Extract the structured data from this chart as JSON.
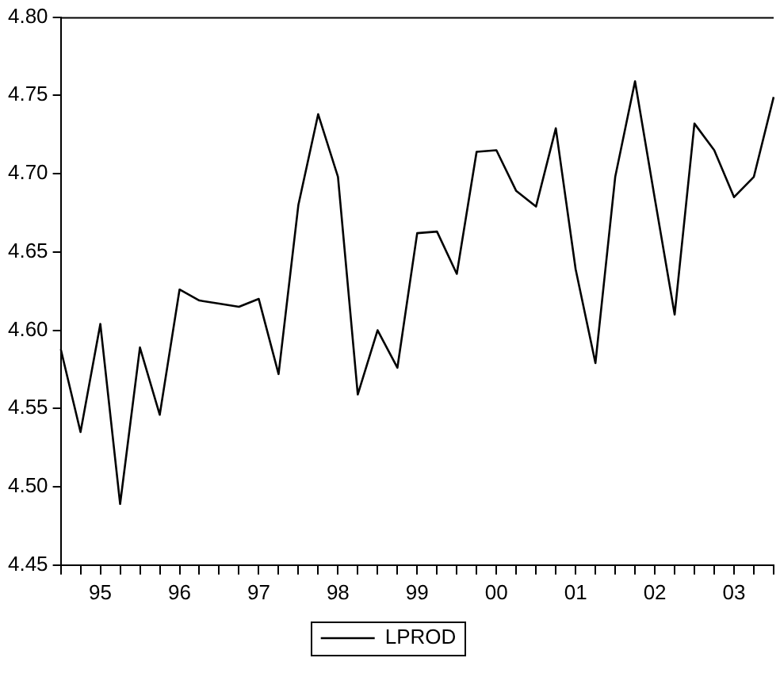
{
  "chart_data": {
    "type": "line",
    "categories": [
      null,
      null,
      "95",
      null,
      null,
      null,
      "96",
      null,
      null,
      null,
      "97",
      null,
      null,
      null,
      "98",
      null,
      null,
      null,
      "99",
      null,
      null,
      null,
      "00",
      null,
      null,
      null,
      "01",
      null,
      null,
      null,
      "02",
      null,
      null,
      null,
      "03",
      null,
      null
    ],
    "series": [
      {
        "name": "LPROD",
        "color": "#000000",
        "values": [
          4.588,
          4.535,
          4.604,
          4.489,
          4.589,
          4.546,
          4.626,
          4.619,
          4.617,
          4.615,
          4.62,
          4.572,
          4.68,
          4.738,
          4.698,
          4.559,
          4.6,
          4.576,
          4.662,
          4.663,
          4.636,
          4.714,
          4.715,
          4.689,
          4.679,
          4.729,
          4.639,
          4.579,
          4.698,
          4.759,
          4.684,
          4.61,
          4.732,
          4.715,
          4.685,
          4.698,
          4.749
        ]
      }
    ],
    "ylim": [
      4.45,
      4.8
    ],
    "yticks": [
      {
        "value": 4.45,
        "label": "4.45"
      },
      {
        "value": 4.5,
        "label": "4.50"
      },
      {
        "value": 4.55,
        "label": "4.55"
      },
      {
        "value": 4.6,
        "label": "4.60"
      },
      {
        "value": 4.65,
        "label": "4.65"
      },
      {
        "value": 4.7,
        "label": "4.70"
      },
      {
        "value": 4.75,
        "label": "4.75"
      },
      {
        "value": 4.8,
        "label": "4.80"
      }
    ],
    "grid": false,
    "legend": "bottom",
    "marker": "none",
    "line_style": "solid"
  }
}
